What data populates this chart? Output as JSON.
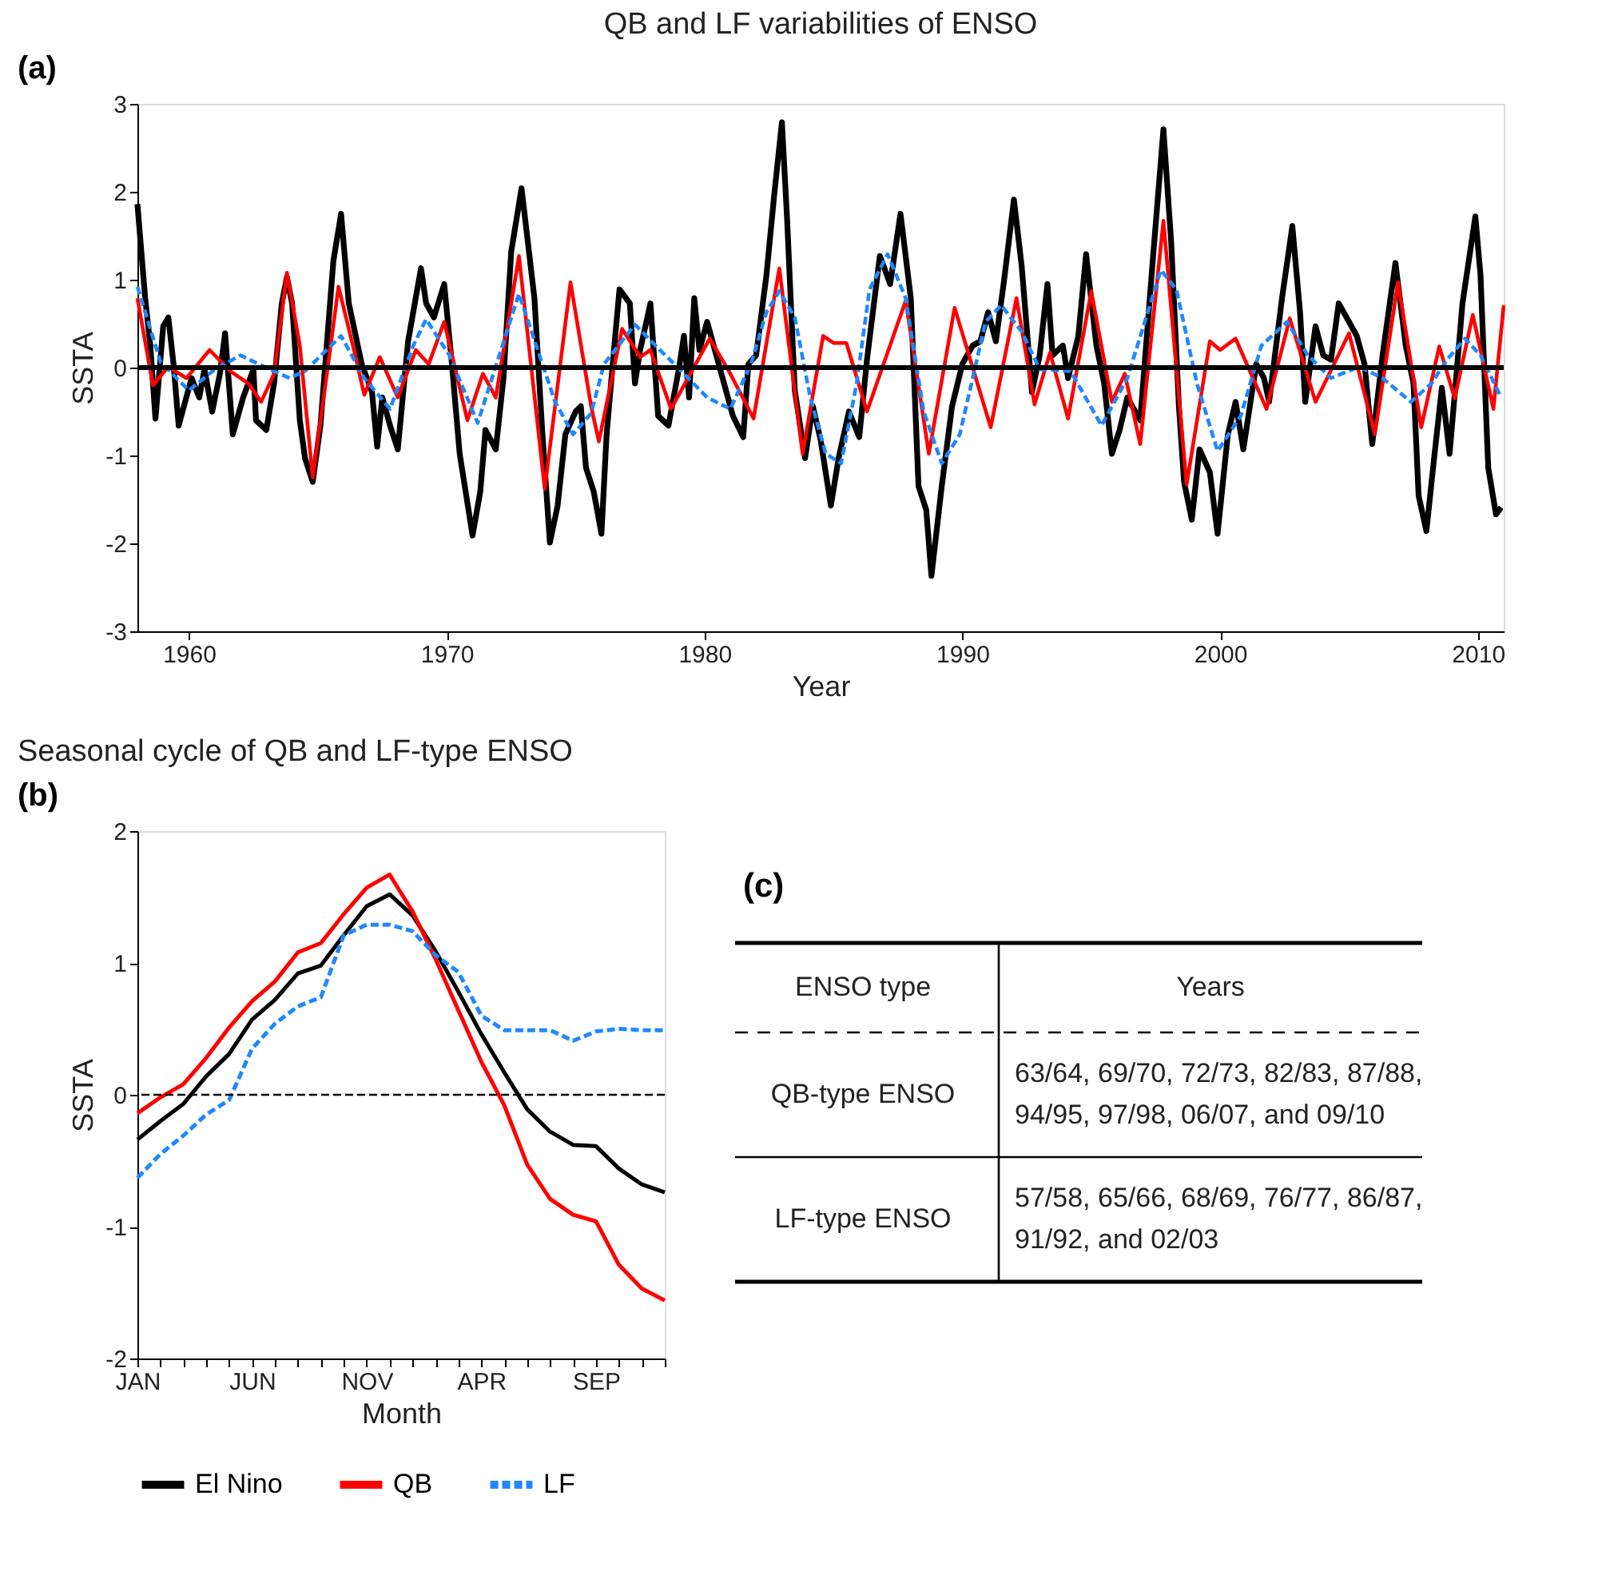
{
  "chart_data": [
    {
      "type": "line",
      "title": "QB and LF variabilities of ENSO",
      "xlabel": "Year",
      "ylabel": "SSTA",
      "annotations": [
        "(a)"
      ],
      "xlim": [
        1958,
        2011
      ],
      "xticks": [
        1960,
        1970,
        1980,
        1990,
        2000,
        2010
      ],
      "ylim": [
        -3,
        3
      ],
      "yticks": [
        -3,
        -2,
        -1,
        0,
        1,
        2,
        3
      ],
      "grid": false,
      "legend": false,
      "ref_lines": [
        {
          "axis": "y",
          "value": 0,
          "color": "#000000",
          "line_style": "solid"
        }
      ],
      "series": [
        {
          "color": "#000000",
          "line_style": "solid",
          "x": [
            1958.0,
            1958.3,
            1958.5,
            1958.7,
            1959.0,
            1959.2,
            1959.4,
            1959.6,
            1960.1,
            1960.4,
            1960.6,
            1960.9,
            1961.2,
            1961.4,
            1961.7,
            1962.1,
            1962.5,
            1962.6,
            1963.0,
            1963.3,
            1963.6,
            1963.8,
            1964.0,
            1964.3,
            1964.5,
            1964.8,
            1965.1,
            1965.6,
            1965.9,
            1966.2,
            1966.7,
            1967.1,
            1967.3,
            1967.5,
            1967.8,
            1968.1,
            1968.5,
            1969.0,
            1969.2,
            1969.5,
            1969.9,
            1970.2,
            1970.5,
            1971.0,
            1971.3,
            1971.5,
            1971.9,
            1972.2,
            1972.5,
            1972.9,
            1973.4,
            1973.7,
            1974.0,
            1974.3,
            1974.6,
            1975.0,
            1975.2,
            1975.4,
            1975.7,
            1976.0,
            1976.2,
            1976.5,
            1976.7,
            1977.1,
            1977.3,
            1977.5,
            1977.9,
            1978.2,
            1978.6,
            1979.0,
            1979.2,
            1979.4,
            1979.6,
            1979.8,
            1980.1,
            1980.7,
            1981.1,
            1981.5,
            1981.7,
            1982.0,
            1982.4,
            1982.7,
            1983.0,
            1983.2,
            1983.5,
            1983.9,
            1984.2,
            1984.5,
            1984.9,
            1985.2,
            1985.6,
            1986.0,
            1986.3,
            1986.8,
            1987.2,
            1987.6,
            1988.0,
            1988.3,
            1988.6,
            1988.8,
            1989.2,
            1989.6,
            1990.0,
            1990.4,
            1990.7,
            1991.0,
            1991.3,
            1991.6,
            1992.0,
            1992.3,
            1992.7,
            1993.0,
            1993.3,
            1993.5,
            1993.9,
            1994.1,
            1994.5,
            1994.8,
            1995.2,
            1995.5,
            1995.8,
            1996.1,
            1996.4,
            1996.9,
            1997.4,
            1997.8,
            1998.1,
            1998.4,
            1998.6,
            1998.9,
            1999.2,
            1999.6,
            1999.9,
            2000.3,
            2000.6,
            2000.9,
            2001.4,
            2001.7,
            2001.9,
            2002.4,
            2002.8,
            2003.1,
            2003.3,
            2003.7,
            2004.0,
            2004.3,
            2004.6,
            2005.0,
            2005.3,
            2005.6,
            2005.9,
            2006.3,
            2006.8,
            2007.2,
            2007.5,
            2007.7,
            2008.0,
            2008.3,
            2008.6,
            2008.9,
            2009.2,
            2009.4,
            2009.9,
            2010.1,
            2010.4,
            2010.7,
            2010.9
          ],
          "values": [
            1.86,
            0.79,
            0.25,
            -0.58,
            0.47,
            0.57,
            0.04,
            -0.66,
            -0.12,
            -0.34,
            -0.02,
            -0.5,
            -0.07,
            0.39,
            -0.76,
            -0.34,
            -0.02,
            -0.6,
            -0.71,
            -0.18,
            0.73,
            1.03,
            0.73,
            -0.6,
            -1.03,
            -1.3,
            -0.66,
            1.21,
            1.75,
            0.73,
            0.04,
            -0.28,
            -0.9,
            -0.34,
            -0.66,
            -0.93,
            0.3,
            1.13,
            0.73,
            0.57,
            0.95,
            0.04,
            -0.98,
            -1.91,
            -1.41,
            -0.71,
            -0.93,
            -0.12,
            1.32,
            2.04,
            0.79,
            -0.71,
            -1.99,
            -1.57,
            -0.76,
            -0.5,
            -0.44,
            -1.14,
            -1.41,
            -1.89,
            -0.76,
            0.25,
            0.89,
            0.73,
            -0.18,
            0.2,
            0.73,
            -0.55,
            -0.66,
            -0.02,
            0.36,
            -0.34,
            0.79,
            0.2,
            0.52,
            -0.12,
            -0.55,
            -0.79,
            0.04,
            0.14,
            1.05,
            1.96,
            2.79,
            1.7,
            -0.26,
            -1.03,
            -0.44,
            -0.82,
            -1.57,
            -1.03,
            -0.5,
            -0.79,
            0.09,
            1.27,
            0.95,
            1.75,
            0.79,
            -1.35,
            -1.62,
            -2.37,
            -1.35,
            -0.44,
            0.04,
            0.25,
            0.3,
            0.63,
            0.3,
            0.95,
            1.91,
            1.16,
            -0.28,
            0.14,
            0.95,
            0.14,
            0.25,
            -0.12,
            0.36,
            1.29,
            0.25,
            -0.18,
            -0.98,
            -0.71,
            -0.34,
            -0.6,
            1.27,
            2.71,
            1.43,
            -0.44,
            -1.3,
            -1.73,
            -0.93,
            -1.19,
            -1.89,
            -0.76,
            -0.39,
            -0.93,
            0.04,
            -0.12,
            -0.39,
            0.79,
            1.61,
            0.63,
            -0.39,
            0.47,
            0.14,
            0.09,
            0.73,
            0.52,
            0.36,
            0.04,
            -0.87,
            0.14,
            1.19,
            0.25,
            -0.18,
            -1.46,
            -1.86,
            -1.03,
            -0.23,
            -0.98,
            0.04,
            0.73,
            1.72,
            1.05,
            -1.14,
            -1.67,
            -1.59
          ]
        },
        {
          "color": "#ff0000",
          "line_style": "solid",
          "x": [
            1958.0,
            1958.6,
            1959.2,
            1959.9,
            1960.8,
            1961.6,
            1962.3,
            1962.8,
            1963.3,
            1963.8,
            1964.3,
            1964.8,
            1965.3,
            1965.8,
            1966.4,
            1966.8,
            1967.4,
            1968.1,
            1968.8,
            1969.3,
            1969.9,
            1970.8,
            1971.4,
            1971.9,
            1972.8,
            1973.8,
            1974.8,
            1975.6,
            1975.9,
            1976.8,
            1977.5,
            1977.9,
            1978.7,
            1980.2,
            1981.0,
            1981.9,
            1982.9,
            1983.8,
            1984.6,
            1985.0,
            1985.5,
            1986.3,
            1987.8,
            1988.7,
            1989.7,
            1991.1,
            1992.1,
            1992.8,
            1993.4,
            1994.1,
            1995.0,
            1995.8,
            1996.3,
            1996.9,
            1997.8,
            1998.7,
            1999.6,
            2000.0,
            2000.6,
            2001.8,
            2002.7,
            2003.7,
            2005.0,
            2006.0,
            2006.9,
            2007.8,
            2008.5,
            2009.1,
            2009.8,
            2010.6,
            2011.0
          ],
          "values": [
            0.79,
            -0.2,
            0.01,
            -0.12,
            0.2,
            -0.04,
            -0.18,
            -0.39,
            -0.07,
            1.08,
            0.25,
            -1.25,
            -0.18,
            0.92,
            0.2,
            -0.31,
            0.12,
            -0.34,
            0.2,
            0.04,
            0.52,
            -0.6,
            -0.07,
            -0.34,
            1.27,
            -1.38,
            0.97,
            -0.44,
            -0.84,
            0.44,
            0.12,
            0.2,
            -0.47,
            0.33,
            -0.07,
            -0.58,
            1.13,
            -0.98,
            0.36,
            0.28,
            0.28,
            -0.5,
            0.76,
            -0.98,
            0.68,
            -0.68,
            0.79,
            -0.42,
            0.17,
            -0.58,
            0.87,
            -0.39,
            -0.07,
            -0.87,
            1.67,
            -1.33,
            0.3,
            0.2,
            0.33,
            -0.47,
            0.56,
            -0.39,
            0.39,
            -0.76,
            0.97,
            -0.68,
            0.24,
            -0.35,
            0.6,
            -0.47,
            0.71
          ]
        },
        {
          "color": "#1e88ff",
          "line_style": "dashed",
          "x": [
            1958.0,
            1958.9,
            1960.0,
            1961.0,
            1962.0,
            1962.7,
            1963.9,
            1964.5,
            1965.9,
            1966.8,
            1967.8,
            1968.7,
            1969.2,
            1970.1,
            1971.2,
            1972.8,
            1974.2,
            1974.9,
            1975.6,
            1976.1,
            1977.3,
            1978.1,
            1979.1,
            1980.1,
            1981.0,
            1981.8,
            1982.4,
            1982.9,
            1983.5,
            1984.1,
            1984.7,
            1985.3,
            1985.9,
            1986.4,
            1987.1,
            1987.8,
            1988.5,
            1989.2,
            1989.9,
            1990.9,
            1991.5,
            1992.3,
            1993.0,
            1994.2,
            1995.4,
            1996.4,
            1997.7,
            1998.3,
            1999.1,
            1999.9,
            2000.8,
            2001.6,
            2002.6,
            2003.4,
            2004.3,
            2005.4,
            2006.3,
            2007.4,
            2008.2,
            2008.8,
            2009.5,
            2010.1,
            2010.9
          ],
          "values": [
            0.92,
            0.06,
            -0.26,
            -0.02,
            0.14,
            0.04,
            -0.12,
            -0.04,
            0.36,
            -0.12,
            -0.47,
            0.25,
            0.55,
            0.14,
            -0.63,
            0.84,
            -0.39,
            -0.76,
            -0.52,
            0.04,
            0.49,
            0.25,
            -0.04,
            -0.34,
            -0.47,
            0.04,
            0.63,
            0.87,
            0.57,
            -0.34,
            -0.98,
            -1.09,
            -0.18,
            0.89,
            1.29,
            0.79,
            -0.5,
            -1.09,
            -0.76,
            0.52,
            0.71,
            0.41,
            -0.02,
            -0.04,
            -0.66,
            -0.12,
            1.11,
            0.89,
            -0.18,
            -0.95,
            -0.55,
            0.25,
            0.52,
            0.14,
            -0.12,
            0.01,
            -0.12,
            -0.39,
            -0.18,
            0.09,
            0.33,
            0.14,
            -0.34
          ]
        }
      ]
    },
    {
      "type": "line",
      "title": "Seasonal cycle of QB and LF-type ENSO",
      "xlabel": "Month",
      "ylabel": "SSTA",
      "annotations": [
        "(b)"
      ],
      "categories": [
        "JAN",
        null,
        null,
        null,
        null,
        "JUN",
        null,
        null,
        null,
        null,
        "NOV",
        null,
        null,
        null,
        null,
        "APR",
        null,
        null,
        null,
        null,
        "SEP",
        null,
        null,
        null
      ],
      "ylim": [
        -2,
        2
      ],
      "yticks": [
        -2,
        -1,
        0,
        1,
        2
      ],
      "grid": false,
      "legend": "bottom",
      "ref_lines": [
        {
          "axis": "y",
          "value": 0,
          "color": "#000000",
          "line_style": "dashed"
        }
      ],
      "series": [
        {
          "name": "El Nino",
          "color": "#000000",
          "line_style": "solid",
          "values": [
            -0.34,
            -0.2,
            -0.07,
            0.14,
            0.31,
            0.57,
            0.72,
            0.92,
            0.98,
            1.21,
            1.43,
            1.52,
            1.36,
            1.09,
            0.78,
            0.46,
            0.17,
            -0.11,
            -0.28,
            -0.38,
            -0.39,
            -0.56,
            -0.68,
            -0.74
          ]
        },
        {
          "name": "QB",
          "color": "#ff0000",
          "line_style": "solid",
          "values": [
            -0.14,
            -0.02,
            0.08,
            0.28,
            0.51,
            0.71,
            0.86,
            1.08,
            1.15,
            1.37,
            1.57,
            1.67,
            1.39,
            1.03,
            0.64,
            0.25,
            -0.08,
            -0.53,
            -0.79,
            -0.91,
            -0.96,
            -1.29,
            -1.47,
            -1.56
          ]
        },
        {
          "name": "LF",
          "color": "#1e88ff",
          "line_style": "dashed",
          "values": [
            -0.63,
            -0.45,
            -0.31,
            -0.15,
            -0.04,
            0.35,
            0.54,
            0.67,
            0.74,
            1.21,
            1.29,
            1.29,
            1.24,
            1.06,
            0.93,
            0.6,
            0.49,
            0.49,
            0.49,
            0.41,
            0.48,
            0.5,
            0.49,
            0.49
          ]
        }
      ]
    },
    {
      "type": "other",
      "title": "(c)",
      "categories": [
        "ENSO type",
        "QB-type ENSO",
        "LF-type ENSO"
      ],
      "annotations": [
        "Years",
        "63/64, 69/70, 72/73, 82/83, 87/88, 94/95, 97/98, 06/07, and 09/10",
        "57/58, 65/66, 68/69, 76/77, 86/87, 91/92, and 02/03"
      ]
    }
  ]
}
